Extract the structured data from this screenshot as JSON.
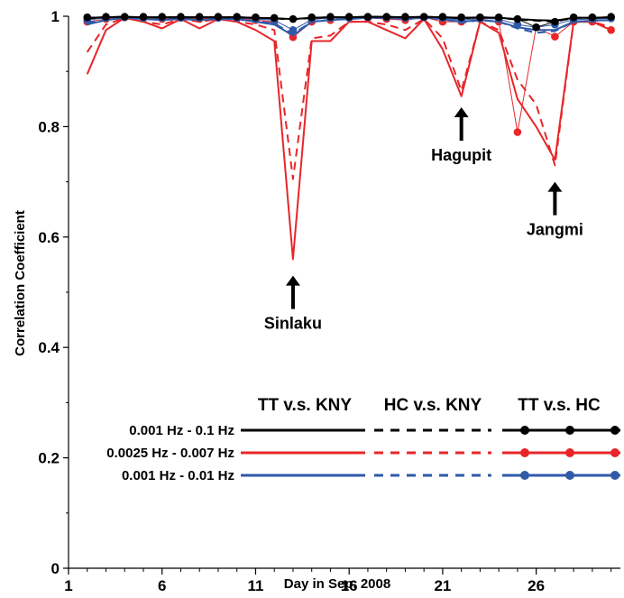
{
  "chart_data": {
    "type": "line",
    "title": "",
    "xlabel": "Day in Sep. 2008",
    "ylabel": "Correlation Coefficient",
    "xlim": [
      1,
      30.5
    ],
    "ylim": [
      0,
      1
    ],
    "x_ticks": [
      1,
      6,
      11,
      16,
      21,
      26
    ],
    "x_tick_labels": [
      "1",
      "6",
      "11",
      "16",
      "21",
      "26"
    ],
    "y_ticks": [
      0,
      0.2,
      0.4,
      0.6,
      0.8,
      1
    ],
    "y_tick_labels": [
      "0",
      "0.2",
      "0.4",
      "0.6",
      "0.8",
      "1"
    ],
    "grid": false,
    "legend": {
      "placement": "bottom-right",
      "column_headers": [
        "TT v.s. KNY",
        "HC v.s. KNY",
        "TT v.s. HC"
      ],
      "row_labels": [
        "0.001 Hz - 0.1 Hz",
        "0.0025 Hz - 0.007 Hz",
        "0.001 Hz - 0.01 Hz"
      ]
    },
    "colors": {
      "black": "#000000",
      "red": "#e8262a",
      "blue": "#2f5aa8"
    },
    "annotations": [
      {
        "text": "Sinlaku",
        "x": 13,
        "y": 0.53
      },
      {
        "text": "Hagupit",
        "x": 22,
        "y": 0.835
      },
      {
        "text": "Jangmi",
        "x": 27,
        "y": 0.7
      }
    ],
    "series": [
      {
        "band": "0.001 Hz - 0.1 Hz",
        "pair": "TT v.s. KNY",
        "color": "black",
        "style": "solid",
        "markers": false,
        "x": [
          2,
          3,
          4,
          5,
          6,
          7,
          8,
          9,
          10,
          11,
          12,
          13,
          14,
          15,
          16,
          17,
          18,
          19,
          20,
          21,
          22,
          23,
          24,
          25,
          26,
          27,
          28,
          29,
          30
        ],
        "y": [
          0.997,
          0.998,
          0.999,
          0.998,
          0.998,
          0.998,
          0.998,
          0.998,
          0.998,
          0.997,
          0.996,
          0.995,
          0.997,
          0.998,
          0.998,
          0.999,
          0.999,
          0.998,
          0.999,
          0.998,
          0.997,
          0.998,
          0.997,
          0.995,
          0.993,
          0.992,
          0.997,
          0.997,
          0.998
        ]
      },
      {
        "band": "0.001 Hz - 0.1 Hz",
        "pair": "HC v.s. KNY",
        "color": "black",
        "style": "dashed",
        "markers": false,
        "x": [
          2,
          3,
          4,
          5,
          6,
          7,
          8,
          9,
          10,
          11,
          12,
          13,
          14,
          15,
          16,
          17,
          18,
          19,
          20,
          21,
          22,
          23,
          24,
          25,
          26,
          27,
          28,
          29,
          30
        ],
        "y": [
          0.996,
          0.998,
          0.999,
          0.998,
          0.998,
          0.998,
          0.998,
          0.998,
          0.998,
          0.997,
          0.996,
          0.994,
          0.997,
          0.998,
          0.998,
          0.999,
          0.999,
          0.998,
          0.999,
          0.998,
          0.996,
          0.998,
          0.997,
          0.994,
          0.992,
          0.99,
          0.997,
          0.997,
          0.998
        ]
      },
      {
        "band": "0.001 Hz - 0.1 Hz",
        "pair": "TT v.s. HC",
        "color": "black",
        "style": "solid",
        "markers": true,
        "x": [
          2,
          3,
          4,
          5,
          6,
          7,
          8,
          9,
          10,
          11,
          12,
          13,
          14,
          15,
          16,
          17,
          18,
          19,
          20,
          21,
          22,
          23,
          24,
          25,
          26,
          27,
          28,
          29,
          30
        ],
        "y": [
          0.998,
          0.999,
          0.999,
          0.999,
          0.999,
          0.999,
          0.999,
          0.999,
          0.999,
          0.998,
          0.997,
          0.995,
          0.998,
          0.999,
          0.999,
          0.999,
          0.999,
          0.999,
          0.999,
          0.999,
          0.998,
          0.998,
          0.998,
          0.995,
          0.98,
          0.99,
          0.998,
          0.998,
          0.999
        ]
      },
      {
        "band": "0.001 Hz - 0.01 Hz",
        "pair": "TT v.s. KNY",
        "color": "blue",
        "style": "solid",
        "markers": false,
        "x": [
          2,
          3,
          4,
          5,
          6,
          7,
          8,
          9,
          10,
          11,
          12,
          13,
          14,
          15,
          16,
          17,
          18,
          19,
          20,
          21,
          22,
          23,
          24,
          25,
          26,
          27,
          28,
          29,
          30
        ],
        "y": [
          0.985,
          0.993,
          0.997,
          0.995,
          0.993,
          0.995,
          0.993,
          0.995,
          0.995,
          0.99,
          0.985,
          0.965,
          0.99,
          0.993,
          0.995,
          0.997,
          0.997,
          0.995,
          0.997,
          0.995,
          0.99,
          0.993,
          0.99,
          0.98,
          0.975,
          0.975,
          0.99,
          0.992,
          0.993
        ]
      },
      {
        "band": "0.001 Hz - 0.01 Hz",
        "pair": "HC v.s. KNY",
        "color": "blue",
        "style": "dashed",
        "markers": false,
        "x": [
          2,
          3,
          4,
          5,
          6,
          7,
          8,
          9,
          10,
          11,
          12,
          13,
          14,
          15,
          16,
          17,
          18,
          19,
          20,
          21,
          22,
          23,
          24,
          25,
          26,
          27,
          28,
          29,
          30
        ],
        "y": [
          0.988,
          0.994,
          0.997,
          0.995,
          0.994,
          0.995,
          0.994,
          0.995,
          0.995,
          0.991,
          0.987,
          0.968,
          0.99,
          0.994,
          0.995,
          0.997,
          0.997,
          0.995,
          0.997,
          0.995,
          0.988,
          0.993,
          0.99,
          0.978,
          0.97,
          0.973,
          0.99,
          0.992,
          0.993
        ]
      },
      {
        "band": "0.001 Hz - 0.01 Hz",
        "pair": "TT v.s. HC",
        "color": "blue",
        "style": "solid",
        "markers": true,
        "x": [
          2,
          3,
          4,
          5,
          6,
          7,
          8,
          9,
          10,
          11,
          12,
          13,
          14,
          15,
          16,
          17,
          18,
          19,
          20,
          21,
          22,
          23,
          24,
          25,
          26,
          27,
          28,
          29,
          30
        ],
        "y": [
          0.993,
          0.997,
          0.998,
          0.997,
          0.997,
          0.997,
          0.997,
          0.997,
          0.997,
          0.995,
          0.993,
          0.975,
          0.994,
          0.997,
          0.997,
          0.998,
          0.998,
          0.997,
          0.998,
          0.997,
          0.993,
          0.996,
          0.995,
          0.985,
          0.98,
          0.985,
          0.994,
          0.995,
          0.996
        ]
      },
      {
        "band": "0.0025 Hz - 0.007 Hz",
        "pair": "TT v.s. KNY",
        "color": "red",
        "style": "solid",
        "markers": false,
        "x": [
          2,
          3,
          4,
          5,
          6,
          7,
          8,
          9,
          10,
          11,
          12,
          13,
          14,
          15,
          16,
          17,
          18,
          19,
          20,
          21,
          22,
          23,
          24,
          25,
          26,
          27,
          28,
          29,
          30
        ],
        "y": [
          0.895,
          0.975,
          0.997,
          0.99,
          0.978,
          0.995,
          0.978,
          0.995,
          0.99,
          0.975,
          0.955,
          0.56,
          0.955,
          0.955,
          0.99,
          0.99,
          0.975,
          0.96,
          0.995,
          0.94,
          0.855,
          0.99,
          0.97,
          0.85,
          0.8,
          0.74,
          0.99,
          0.99,
          0.975
        ]
      },
      {
        "band": "0.0025 Hz - 0.007 Hz",
        "pair": "HC v.s. KNY",
        "color": "red",
        "style": "dashed",
        "markers": false,
        "x": [
          2,
          3,
          4,
          5,
          6,
          7,
          8,
          9,
          10,
          11,
          12,
          13,
          14,
          15,
          16,
          17,
          18,
          19,
          20,
          21,
          22,
          23,
          24,
          25,
          26,
          27,
          28,
          29,
          30
        ],
        "y": [
          0.935,
          0.985,
          0.997,
          0.99,
          0.985,
          0.995,
          0.99,
          0.995,
          0.99,
          0.985,
          0.975,
          0.705,
          0.96,
          0.965,
          0.99,
          0.99,
          0.985,
          0.975,
          0.995,
          0.96,
          0.865,
          0.99,
          0.975,
          0.885,
          0.84,
          0.73,
          0.99,
          0.99,
          0.98
        ]
      },
      {
        "band": "0.0025 Hz - 0.007 Hz",
        "pair": "TT v.s. HC",
        "color": "red",
        "style": "solid",
        "markers": true,
        "x": [
          2,
          3,
          4,
          5,
          6,
          7,
          8,
          9,
          10,
          11,
          12,
          13,
          14,
          15,
          16,
          17,
          18,
          19,
          20,
          21,
          22,
          23,
          24,
          25,
          26,
          27,
          28,
          29,
          30
        ],
        "y": [
          0.99,
          0.995,
          0.998,
          0.997,
          0.995,
          0.997,
          0.995,
          0.997,
          0.996,
          0.993,
          0.99,
          0.962,
          0.99,
          0.993,
          0.997,
          0.997,
          0.995,
          0.993,
          0.998,
          0.99,
          0.99,
          0.995,
          0.99,
          0.79,
          0.98,
          0.963,
          0.99,
          0.99,
          0.975
        ]
      }
    ]
  }
}
